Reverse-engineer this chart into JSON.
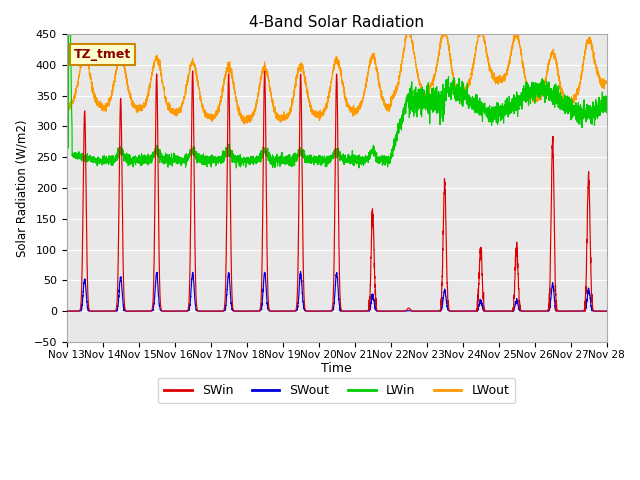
{
  "title": "4-Band Solar Radiation",
  "ylabel": "Solar Radiation (W/m2)",
  "xlabel": "Time",
  "ylim": [
    -50,
    450
  ],
  "xlim": [
    0,
    15
  ],
  "background_color": "#e8e8e8",
  "figure_color": "#ffffff",
  "label_box_text": "TZ_tmet",
  "label_box_facecolor": "#ffffcc",
  "label_box_edgecolor": "#cc8800",
  "label_box_textcolor": "#8B0000",
  "tick_labels": [
    "Nov 13",
    "Nov 14",
    "Nov 15",
    "Nov 16",
    "Nov 17",
    "Nov 18",
    "Nov 19",
    "Nov 20",
    "Nov 21",
    "Nov 22",
    "Nov 23",
    "Nov 24",
    "Nov 25",
    "Nov 26",
    "Nov 27",
    "Nov 28"
  ],
  "yticks": [
    -50,
    0,
    50,
    100,
    150,
    200,
    250,
    300,
    350,
    400,
    450
  ],
  "colors": {
    "SWin": "#dd0000",
    "SWout": "#0000dd",
    "LWin": "#00cc00",
    "LWout": "#ff9900"
  },
  "n_points": 4320,
  "sw_peaks": [
    325,
    345,
    385,
    390,
    385,
    390,
    385,
    385,
    160,
    5,
    210,
    103,
    103,
    280,
    220
  ],
  "lwin_base_early": 250,
  "lwin_base_late": 350,
  "lwout_base": 330,
  "lwout_peak_add": 80
}
